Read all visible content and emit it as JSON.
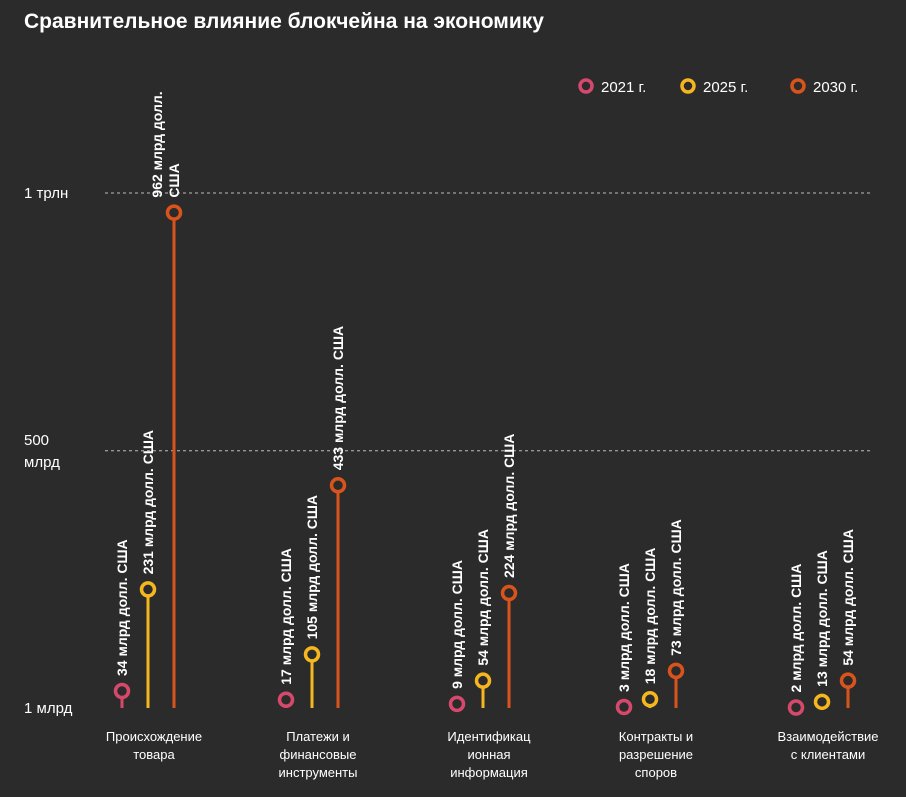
{
  "chart_data": {
    "type": "lollipop",
    "title": "Сравнительное влияние блокчейна на экономику",
    "categories": [
      [
        "Происхождение",
        "товара"
      ],
      [
        "Платежи и",
        "финансовые",
        "инструменты"
      ],
      [
        "Идентификац",
        "ионная",
        "информация"
      ],
      [
        "Контракты и",
        "разрешение",
        "споров"
      ],
      [
        "Взаимодействие",
        "с клиентами"
      ]
    ],
    "series": [
      {
        "name": "2021 г.",
        "color": "#d6496c",
        "values": [
          34,
          17,
          9,
          3,
          2
        ],
        "labels": [
          [
            "34 млрд долл. США"
          ],
          [
            "17 млрд долл. США"
          ],
          [
            "9 млрд долл. США"
          ],
          [
            "3 млрд долл. США"
          ],
          [
            "2 млрд долл. США"
          ]
        ]
      },
      {
        "name": "2025 г.",
        "color": "#f5b620",
        "values": [
          231,
          105,
          54,
          18,
          13
        ],
        "labels": [
          [
            "231 млрд долл. США"
          ],
          [
            "105 млрд долл. США"
          ],
          [
            "54 млрд долл. США"
          ],
          [
            "18 млрд долл. США"
          ],
          [
            "13 млрд долл. США"
          ]
        ]
      },
      {
        "name": "2030 г.",
        "color": "#d9541c",
        "values": [
          962,
          433,
          224,
          73,
          54
        ],
        "labels": [
          [
            "962 млрд долл.",
            "США"
          ],
          [
            "433 млрд долл. США"
          ],
          [
            "224 млрд долл. США"
          ],
          [
            "73 млрд долл. США"
          ],
          [
            "54 млрд долл. США"
          ]
        ]
      }
    ],
    "yaxis": {
      "unit": "млрд долл. США",
      "ylim": [
        1,
        1000
      ],
      "ticks": [
        {
          "value": 1,
          "label": [
            "1 млрд"
          ],
          "grid": false
        },
        {
          "value": 500,
          "label": [
            "500",
            "млрд"
          ],
          "grid": true
        },
        {
          "value": 1000,
          "label": [
            "1 трлн"
          ],
          "grid": true
        }
      ]
    },
    "legend_position": "top-right"
  }
}
